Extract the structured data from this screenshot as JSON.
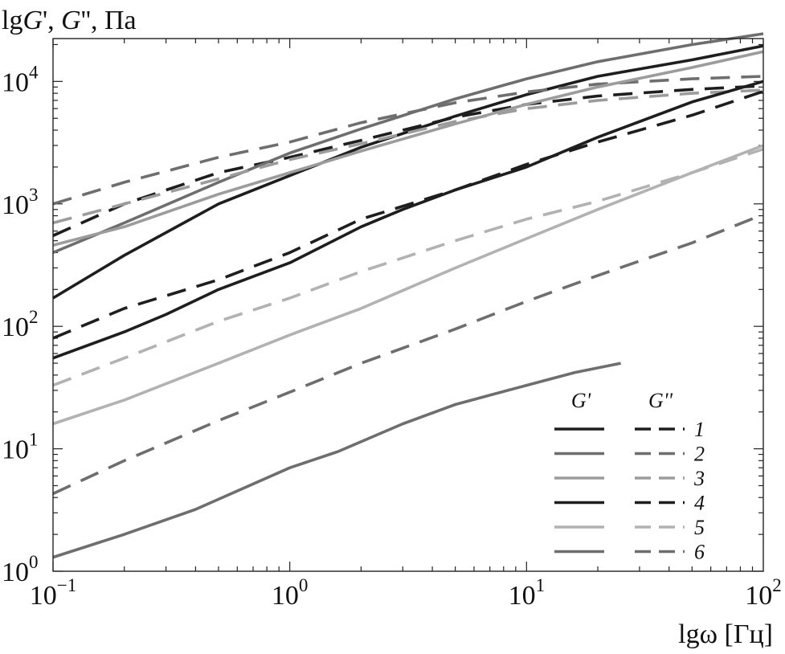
{
  "chart_data": {
    "type": "line",
    "ylabel": {
      "prefix": "lg",
      "g1": "G",
      "sep1": "', ",
      "g2": "G",
      "sep2": "'', Па"
    },
    "xlabel": "lgω [Гц]",
    "x_scale": "log",
    "y_scale": "log",
    "xlim": [
      0.1,
      100
    ],
    "ylim": [
      1,
      30000
    ],
    "x_ticks": [
      {
        "value": 0.1,
        "base": "10",
        "exp": "−1"
      },
      {
        "value": 1,
        "base": "10",
        "exp": "0"
      },
      {
        "value": 10,
        "base": "10",
        "exp": "1"
      },
      {
        "value": 100,
        "base": "10",
        "exp": "2"
      }
    ],
    "y_ticks": [
      {
        "value": 1,
        "base": "10",
        "exp": "0"
      },
      {
        "value": 10,
        "base": "10",
        "exp": "1"
      },
      {
        "value": 100,
        "base": "10",
        "exp": "2"
      },
      {
        "value": 1000,
        "base": "10",
        "exp": "3"
      },
      {
        "value": 10000,
        "base": "10",
        "exp": "4"
      }
    ],
    "legend": {
      "placement": "bottom-right",
      "header_solid": "G'",
      "header_dashed": "G''",
      "entries": [
        {
          "label": "1",
          "color": "#1e1e1e"
        },
        {
          "label": "2",
          "color": "#6e6e6e"
        },
        {
          "label": "3",
          "color": "#9c9c9c"
        },
        {
          "label": "4",
          "color": "#1e1e1e"
        },
        {
          "label": "5",
          "color": "#b2b2b2"
        },
        {
          "label": "6",
          "color": "#6e6e6e"
        }
      ]
    },
    "series": [
      {
        "legend": "1",
        "kind": "G'",
        "dash": false,
        "color": "#1e1e1e",
        "x": [
          0.1,
          0.2,
          0.5,
          1,
          2,
          5,
          10,
          20,
          50,
          100
        ],
        "y": [
          170,
          380,
          1000,
          1700,
          2900,
          5200,
          7800,
          11000,
          15000,
          19500
        ]
      },
      {
        "legend": "1",
        "kind": "G''",
        "dash": true,
        "color": "#1e1e1e",
        "x": [
          0.1,
          0.2,
          0.5,
          1,
          2,
          5,
          10,
          20,
          50,
          100
        ],
        "y": [
          550,
          1000,
          1800,
          2400,
          3300,
          5100,
          6500,
          7600,
          8600,
          9200
        ]
      },
      {
        "legend": "2",
        "kind": "G'",
        "dash": false,
        "color": "#6e6e6e",
        "x": [
          0.1,
          0.2,
          0.5,
          1,
          2,
          5,
          10,
          20,
          50,
          100
        ],
        "y": [
          400,
          700,
          1500,
          2600,
          4100,
          7200,
          10500,
          14500,
          20000,
          24500
        ]
      },
      {
        "legend": "2",
        "kind": "G''",
        "dash": true,
        "color": "#6e6e6e",
        "x": [
          0.1,
          0.2,
          0.5,
          1,
          2,
          5,
          10,
          20,
          50,
          100
        ],
        "y": [
          1000,
          1500,
          2400,
          3200,
          4600,
          6700,
          8200,
          9500,
          10500,
          11000
        ]
      },
      {
        "legend": "3",
        "kind": "G'",
        "dash": false,
        "color": "#9c9c9c",
        "x": [
          0.1,
          0.2,
          0.5,
          1,
          2,
          5,
          10,
          20,
          50,
          100
        ],
        "y": [
          460,
          650,
          1200,
          1800,
          2700,
          4500,
          6500,
          9000,
          13000,
          17500
        ]
      },
      {
        "legend": "3",
        "kind": "G''",
        "dash": true,
        "color": "#9c9c9c",
        "x": [
          0.1,
          0.2,
          0.5,
          1,
          2,
          5,
          10,
          20,
          50,
          100
        ],
        "y": [
          700,
          1000,
          1600,
          2300,
          3100,
          4700,
          6000,
          7000,
          8000,
          8500
        ]
      },
      {
        "legend": "4",
        "kind": "G'",
        "dash": false,
        "color": "#1e1e1e",
        "x": [
          0.1,
          0.2,
          0.3,
          0.5,
          1,
          2,
          3,
          5,
          10,
          20,
          50,
          100
        ],
        "y": [
          55,
          90,
          125,
          200,
          330,
          650,
          900,
          1300,
          2000,
          3500,
          6800,
          10000
        ]
      },
      {
        "legend": "4",
        "kind": "G''",
        "dash": true,
        "color": "#1e1e1e",
        "x": [
          0.1,
          0.2,
          0.5,
          1,
          2,
          5,
          10,
          20,
          50,
          100
        ],
        "y": [
          80,
          140,
          240,
          400,
          750,
          1300,
          2100,
          3200,
          5300,
          8300
        ]
      },
      {
        "legend": "5",
        "kind": "G'",
        "dash": false,
        "color": "#b2b2b2",
        "x": [
          0.1,
          0.2,
          0.5,
          1,
          2,
          5,
          10,
          20,
          50,
          100
        ],
        "y": [
          16,
          25,
          50,
          85,
          140,
          300,
          520,
          900,
          1800,
          3000
        ]
      },
      {
        "legend": "5",
        "kind": "G''",
        "dash": true,
        "color": "#b2b2b2",
        "x": [
          0.1,
          0.2,
          0.5,
          1,
          2,
          5,
          10,
          20,
          50,
          100
        ],
        "y": [
          33,
          55,
          110,
          170,
          280,
          500,
          750,
          1050,
          1800,
          2800
        ]
      },
      {
        "legend": "6",
        "kind": "G'",
        "dash": false,
        "color": "#6e6e6e",
        "x": [
          0.1,
          0.2,
          0.4,
          1,
          1.6,
          3,
          5,
          10,
          16,
          25
        ],
        "y": [
          1.3,
          2,
          3.2,
          7,
          9.5,
          16,
          23,
          33,
          42,
          50
        ]
      },
      {
        "legend": "6",
        "kind": "G''",
        "dash": true,
        "color": "#6e6e6e",
        "x": [
          0.1,
          0.2,
          0.5,
          1,
          2,
          5,
          10,
          20,
          50,
          100
        ],
        "y": [
          4.3,
          8,
          17,
          29,
          50,
          95,
          160,
          260,
          480,
          820
        ]
      }
    ]
  }
}
